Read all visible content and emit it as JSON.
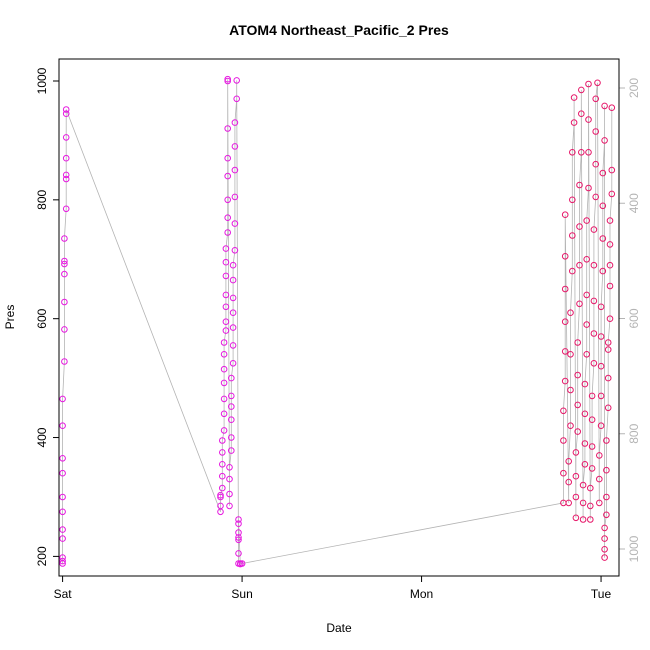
{
  "chart_data": {
    "type": "scatter",
    "title": "ATOM4 Northeast_Pacific_2 Pres",
    "xlabel": "Date",
    "ylabel": "Pres",
    "x_ticks": [
      "Sat",
      "Sun",
      "Mon",
      "Tue"
    ],
    "x_range_days": [
      -0.02,
      3.1
    ],
    "ylim": [
      167,
      1037
    ],
    "y_ticks": [
      200,
      400,
      600,
      800,
      1000
    ],
    "right_axis_ticks": [
      "200",
      "400",
      "600",
      "800",
      "1000"
    ],
    "grid": false,
    "legend": "none",
    "colors": {
      "points_early": "#e619e0",
      "points_late": "#e6196a",
      "line": "#b4b4b4",
      "right_axis": "#b4b4b4",
      "frame": "#000000"
    },
    "series": [
      {
        "points": [
          [
            0.0,
            188
          ],
          [
            0.0,
            192
          ],
          [
            0.0,
            198
          ],
          [
            0.0,
            230
          ],
          [
            0.0,
            245
          ],
          [
            0.0,
            275
          ],
          [
            0.0,
            300
          ],
          [
            0.0,
            340
          ],
          [
            0.0,
            365
          ],
          [
            0.0,
            420
          ],
          [
            0.0,
            465
          ],
          [
            0.01,
            528
          ],
          [
            0.01,
            582
          ],
          [
            0.01,
            628
          ],
          [
            0.01,
            675
          ],
          [
            0.01,
            692
          ],
          [
            0.01,
            697
          ],
          [
            0.01,
            735
          ],
          [
            0.02,
            785
          ],
          [
            0.02,
            835
          ],
          [
            0.02,
            842
          ],
          [
            0.02,
            870
          ],
          [
            0.02,
            905
          ],
          [
            0.02,
            945
          ],
          [
            0.02,
            952
          ],
          [
            0.88,
            275
          ],
          [
            0.88,
            285
          ],
          [
            0.88,
            300
          ],
          [
            0.88,
            303
          ],
          [
            0.89,
            315
          ],
          [
            0.89,
            335
          ],
          [
            0.89,
            355
          ],
          [
            0.89,
            375
          ],
          [
            0.89,
            395
          ],
          [
            0.9,
            412
          ],
          [
            0.9,
            440
          ],
          [
            0.9,
            465
          ],
          [
            0.9,
            492
          ],
          [
            0.9,
            515
          ],
          [
            0.9,
            540
          ],
          [
            0.9,
            560
          ],
          [
            0.91,
            580
          ],
          [
            0.91,
            595
          ],
          [
            0.91,
            620
          ],
          [
            0.91,
            640
          ],
          [
            0.91,
            672
          ],
          [
            0.91,
            695
          ],
          [
            0.91,
            718
          ],
          [
            0.92,
            745
          ],
          [
            0.92,
            770
          ],
          [
            0.92,
            800
          ],
          [
            0.92,
            840
          ],
          [
            0.92,
            870
          ],
          [
            0.92,
            920
          ],
          [
            0.92,
            1003
          ],
          [
            0.92,
            1000
          ],
          [
            0.93,
            285
          ],
          [
            0.93,
            305
          ],
          [
            0.93,
            330
          ],
          [
            0.93,
            350
          ],
          [
            0.94,
            378
          ],
          [
            0.94,
            400
          ],
          [
            0.94,
            430
          ],
          [
            0.94,
            452
          ],
          [
            0.94,
            470
          ],
          [
            0.94,
            500
          ],
          [
            0.95,
            525
          ],
          [
            0.95,
            555
          ],
          [
            0.95,
            585
          ],
          [
            0.95,
            610
          ],
          [
            0.95,
            635
          ],
          [
            0.95,
            665
          ],
          [
            0.95,
            690
          ],
          [
            0.96,
            715
          ],
          [
            0.96,
            760
          ],
          [
            0.96,
            805
          ],
          [
            0.96,
            850
          ],
          [
            0.96,
            890
          ],
          [
            0.96,
            930
          ],
          [
            0.97,
            970
          ],
          [
            0.97,
            1001
          ],
          [
            0.98,
            188
          ],
          [
            0.98,
            205
          ],
          [
            0.98,
            228
          ],
          [
            0.98,
            232
          ],
          [
            0.98,
            240
          ],
          [
            0.98,
            255
          ],
          [
            0.98,
            262
          ],
          [
            0.99,
            187
          ],
          [
            0.99,
            188
          ],
          [
            1.0,
            188
          ],
          [
            2.79,
            290
          ],
          [
            2.79,
            340
          ],
          [
            2.79,
            395
          ],
          [
            2.79,
            445
          ],
          [
            2.8,
            495
          ],
          [
            2.8,
            545
          ],
          [
            2.8,
            595
          ],
          [
            2.8,
            650
          ],
          [
            2.8,
            705
          ],
          [
            2.8,
            775
          ],
          [
            2.82,
            290
          ],
          [
            2.82,
            325
          ],
          [
            2.82,
            360
          ],
          [
            2.83,
            420
          ],
          [
            2.83,
            480
          ],
          [
            2.83,
            540
          ],
          [
            2.83,
            610
          ],
          [
            2.84,
            680
          ],
          [
            2.84,
            740
          ],
          [
            2.84,
            800
          ],
          [
            2.84,
            880
          ],
          [
            2.85,
            930
          ],
          [
            2.85,
            972
          ],
          [
            2.86,
            265
          ],
          [
            2.86,
            300
          ],
          [
            2.86,
            335
          ],
          [
            2.86,
            375
          ],
          [
            2.87,
            410
          ],
          [
            2.87,
            455
          ],
          [
            2.87,
            505
          ],
          [
            2.87,
            560
          ],
          [
            2.88,
            625
          ],
          [
            2.88,
            690
          ],
          [
            2.88,
            755
          ],
          [
            2.88,
            825
          ],
          [
            2.89,
            880
          ],
          [
            2.89,
            945
          ],
          [
            2.89,
            985
          ],
          [
            2.9,
            262
          ],
          [
            2.9,
            290
          ],
          [
            2.9,
            320
          ],
          [
            2.91,
            355
          ],
          [
            2.91,
            390
          ],
          [
            2.91,
            440
          ],
          [
            2.91,
            490
          ],
          [
            2.92,
            540
          ],
          [
            2.92,
            590
          ],
          [
            2.92,
            640
          ],
          [
            2.92,
            700
          ],
          [
            2.92,
            765
          ],
          [
            2.93,
            820
          ],
          [
            2.93,
            880
          ],
          [
            2.93,
            935
          ],
          [
            2.93,
            995
          ],
          [
            2.94,
            262
          ],
          [
            2.94,
            285
          ],
          [
            2.94,
            315
          ],
          [
            2.95,
            348
          ],
          [
            2.95,
            385
          ],
          [
            2.95,
            430
          ],
          [
            2.95,
            470
          ],
          [
            2.96,
            525
          ],
          [
            2.96,
            575
          ],
          [
            2.96,
            630
          ],
          [
            2.96,
            690
          ],
          [
            2.96,
            750
          ],
          [
            2.97,
            805
          ],
          [
            2.97,
            860
          ],
          [
            2.97,
            915
          ],
          [
            2.97,
            970
          ],
          [
            2.98,
            997
          ],
          [
            2.99,
            290
          ],
          [
            2.99,
            330
          ],
          [
            2.99,
            370
          ],
          [
            3.0,
            420
          ],
          [
            3.0,
            470
          ],
          [
            3.0,
            520
          ],
          [
            3.0,
            570
          ],
          [
            3.0,
            620
          ],
          [
            3.01,
            680
          ],
          [
            3.01,
            735
          ],
          [
            3.01,
            790
          ],
          [
            3.01,
            845
          ],
          [
            3.02,
            900
          ],
          [
            3.02,
            958
          ],
          [
            3.02,
            198
          ],
          [
            3.02,
            212
          ],
          [
            3.02,
            230
          ],
          [
            3.02,
            248
          ],
          [
            3.03,
            270
          ],
          [
            3.03,
            300
          ],
          [
            3.03,
            345
          ],
          [
            3.03,
            395
          ],
          [
            3.04,
            450
          ],
          [
            3.04,
            500
          ],
          [
            3.04,
            548
          ],
          [
            3.04,
            560
          ],
          [
            3.05,
            600
          ],
          [
            3.05,
            655
          ],
          [
            3.05,
            690
          ],
          [
            3.05,
            725
          ],
          [
            3.05,
            765
          ],
          [
            3.06,
            810
          ],
          [
            3.06,
            850
          ],
          [
            3.06,
            955
          ]
        ]
      }
    ]
  }
}
